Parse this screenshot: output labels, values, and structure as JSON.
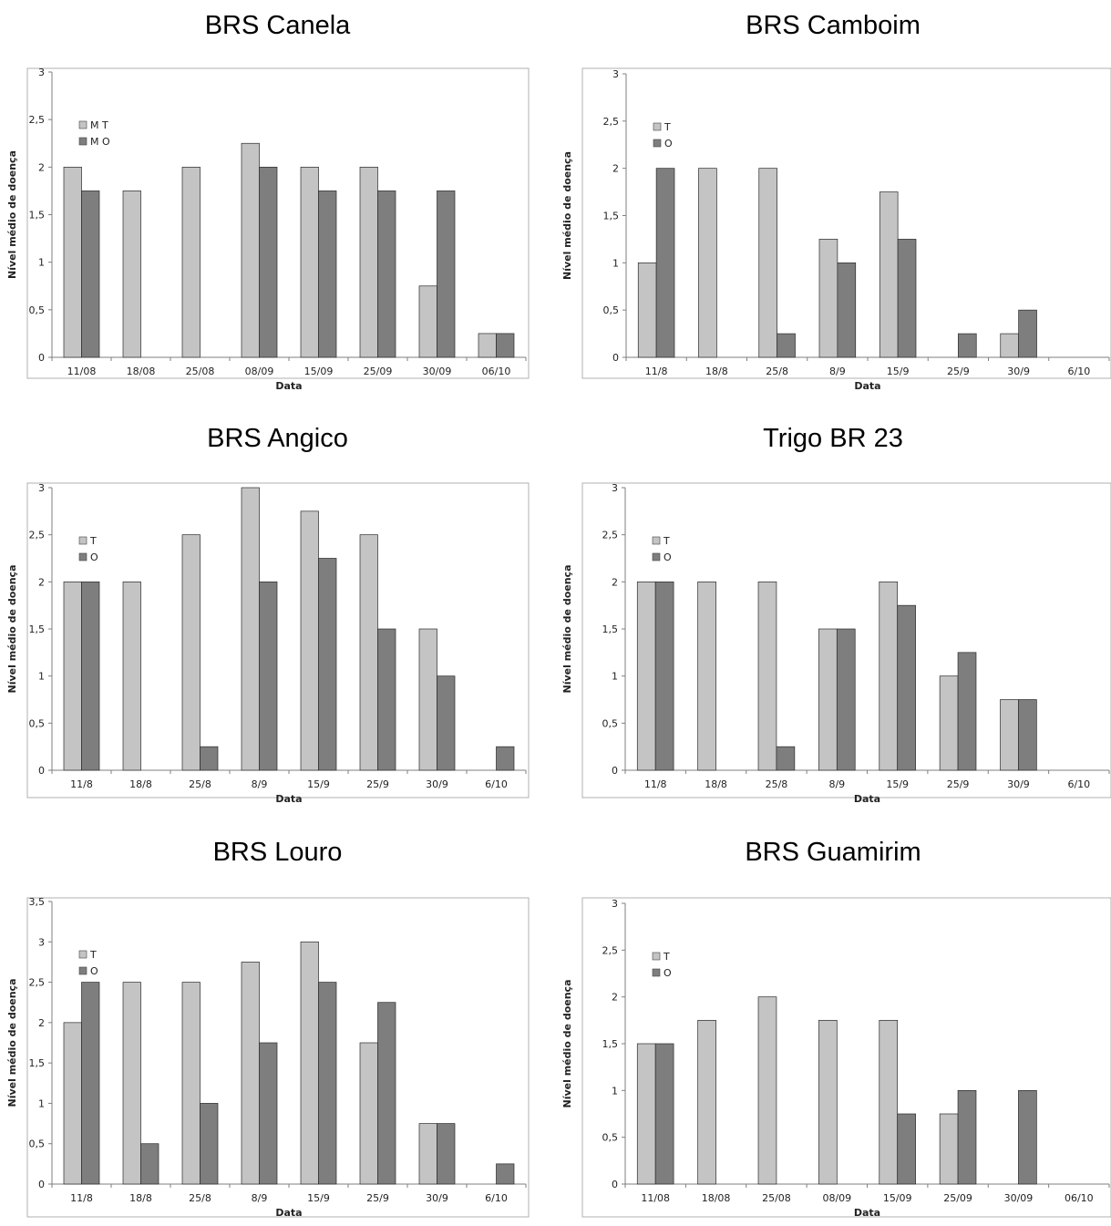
{
  "chart_data": [
    {
      "type": "bar",
      "title": "BRS Canela",
      "xlabel": "Data",
      "ylabel": "Nível médio de doença",
      "categories": [
        "11/08",
        "18/08",
        "25/08",
        "08/09",
        "15/09",
        "25/09",
        "30/09",
        "06/10"
      ],
      "yticks": [
        "0",
        "0,5",
        "1",
        "1,5",
        "2",
        "2,5",
        "3"
      ],
      "ylim": [
        0,
        3
      ],
      "series": [
        {
          "name": "M T",
          "values": [
            2,
            1.75,
            2,
            2.25,
            2,
            2,
            0.75,
            0.25
          ]
        },
        {
          "name": "M O",
          "values": [
            1.75,
            0,
            0,
            2,
            1.75,
            1.75,
            1.75,
            0.25
          ]
        }
      ],
      "legend": "top-left"
    },
    {
      "type": "bar",
      "title": "BRS Camboim",
      "xlabel": "Data",
      "ylabel": "Nível médio de doença",
      "categories": [
        "11/8",
        "18/8",
        "25/8",
        "8/9",
        "15/9",
        "25/9",
        "30/9",
        "6/10"
      ],
      "yticks": [
        "0",
        "0,5",
        "1",
        "1,5",
        "2",
        "2,5",
        "3"
      ],
      "ylim": [
        0,
        3
      ],
      "series": [
        {
          "name": "T",
          "values": [
            1,
            2,
            2,
            1.25,
            1.75,
            0,
            0.25,
            0
          ]
        },
        {
          "name": "O",
          "values": [
            2,
            0,
            0.25,
            1,
            1.25,
            0.25,
            0.5,
            0
          ]
        }
      ],
      "legend": "top-left"
    },
    {
      "type": "bar",
      "title": "BRS Angico",
      "xlabel": "Data",
      "ylabel": "Nível médio de doença",
      "categories": [
        "11/8",
        "18/8",
        "25/8",
        "8/9",
        "15/9",
        "25/9",
        "30/9",
        "6/10"
      ],
      "yticks": [
        "0",
        "0,5",
        "1",
        "1,5",
        "2",
        "2,5",
        "3"
      ],
      "ylim": [
        0,
        3
      ],
      "series": [
        {
          "name": "T",
          "values": [
            2,
            2,
            2.5,
            3,
            2.75,
            2.5,
            1.5,
            0
          ]
        },
        {
          "name": "O",
          "values": [
            2,
            0,
            0.25,
            2,
            2.25,
            1.5,
            1,
            0.25
          ]
        }
      ],
      "legend": "top-left"
    },
    {
      "type": "bar",
      "title": "Trigo BR 23",
      "xlabel": "Data",
      "ylabel": "Nível médio de doença",
      "categories": [
        "11/8",
        "18/8",
        "25/8",
        "8/9",
        "15/9",
        "25/9",
        "30/9",
        "6/10"
      ],
      "yticks": [
        "0",
        "0,5",
        "1",
        "1,5",
        "2",
        "2,5",
        "3"
      ],
      "ylim": [
        0,
        3
      ],
      "series": [
        {
          "name": "T",
          "values": [
            2,
            2,
            2,
            1.5,
            2,
            1,
            0.75,
            0
          ]
        },
        {
          "name": "O",
          "values": [
            2,
            0,
            0.25,
            1.5,
            1.75,
            1.25,
            0.75,
            0
          ]
        }
      ],
      "legend": "top-left"
    },
    {
      "type": "bar",
      "title": "BRS Louro",
      "xlabel": "Data",
      "ylabel": "Nível médio de doença",
      "categories": [
        "11/8",
        "18/8",
        "25/8",
        "8/9",
        "15/9",
        "25/9",
        "30/9",
        "6/10"
      ],
      "yticks": [
        "0",
        "0,5",
        "1",
        "1,5",
        "2",
        "2,5",
        "3",
        "3,5"
      ],
      "ylim": [
        0,
        3.5
      ],
      "series": [
        {
          "name": "T",
          "values": [
            2,
            2.5,
            2.5,
            2.75,
            3,
            1.75,
            0.75,
            0
          ]
        },
        {
          "name": "O",
          "values": [
            2.5,
            0.5,
            1,
            1.75,
            2.5,
            2.25,
            0.75,
            0.25
          ]
        }
      ],
      "legend": "top-left"
    },
    {
      "type": "bar",
      "title": "BRS Guamirim",
      "xlabel": "Data",
      "ylabel": "Nível médio de doença",
      "categories": [
        "11/08",
        "18/08",
        "25/08",
        "08/09",
        "15/09",
        "25/09",
        "30/09",
        "06/10"
      ],
      "yticks": [
        "0",
        "0,5",
        "1",
        "1,5",
        "2",
        "2,5",
        "3"
      ],
      "ylim": [
        0,
        3
      ],
      "series": [
        {
          "name": "T",
          "values": [
            1.5,
            1.75,
            2,
            1.75,
            1.75,
            0.75,
            0,
            0
          ]
        },
        {
          "name": "O",
          "values": [
            1.5,
            0,
            0,
            0,
            0.75,
            1,
            1,
            0
          ]
        }
      ],
      "legend": "top-left"
    }
  ],
  "colors": {
    "light_bar": "#c4c4c4",
    "dark_bar": "#7e7e7e",
    "axis": "#7f7f7f",
    "frame": "#b0b0b0"
  }
}
